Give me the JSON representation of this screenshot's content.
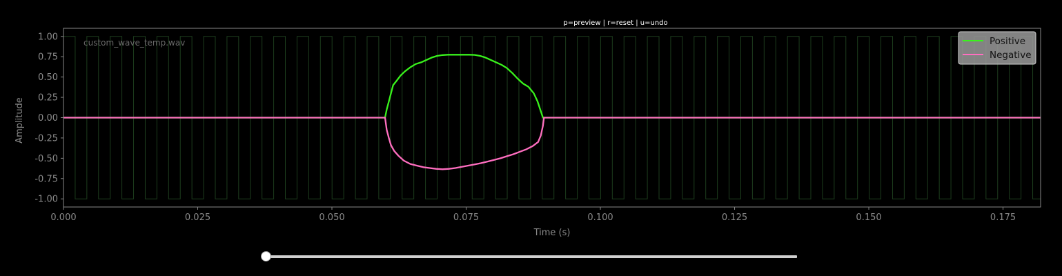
{
  "hint_text": "p=preview | r=reset | u=undo",
  "file_label": "custom_wave_temp.wav",
  "slider_value": 0.0,
  "chart_data": {
    "type": "line",
    "xlabel": "Time (s)",
    "ylabel": "Amplitude",
    "xlim": [
      0.0,
      0.182
    ],
    "ylim": [
      -1.1,
      1.1
    ],
    "xticks": [
      "0.000",
      "0.025",
      "0.050",
      "0.075",
      "0.100",
      "0.125",
      "0.150",
      "0.175"
    ],
    "yticks": [
      "1.00",
      "0.75",
      "0.50",
      "0.25",
      "0.00",
      "-0.25",
      "-0.50",
      "-0.75",
      "-1.00"
    ],
    "legend_position": "top-right",
    "background_wave": {
      "type": "square",
      "period": 0.00435,
      "amplitude": 1.0,
      "color": "#1d3d1d"
    },
    "series": [
      {
        "name": "Positive",
        "color": "#39f21c",
        "x": [
          0.0,
          0.0599,
          0.0602,
          0.0606,
          0.061,
          0.0614,
          0.062,
          0.0628,
          0.0636,
          0.0646,
          0.0656,
          0.0666,
          0.0676,
          0.0686,
          0.0696,
          0.0706,
          0.0716,
          0.0726,
          0.0736,
          0.0746,
          0.0756,
          0.0766,
          0.0776,
          0.0786,
          0.0796,
          0.0806,
          0.0816,
          0.0826,
          0.0836,
          0.0846,
          0.0856,
          0.0866,
          0.0876,
          0.0883,
          0.0888,
          0.0893,
          0.0895,
          0.182
        ],
        "y": [
          0.0,
          0.0,
          0.1,
          0.2,
          0.3,
          0.4,
          0.45,
          0.52,
          0.57,
          0.62,
          0.66,
          0.68,
          0.71,
          0.74,
          0.76,
          0.77,
          0.775,
          0.775,
          0.775,
          0.775,
          0.775,
          0.772,
          0.76,
          0.74,
          0.71,
          0.68,
          0.65,
          0.61,
          0.55,
          0.48,
          0.42,
          0.38,
          0.3,
          0.2,
          0.1,
          0.0,
          0.0,
          0.0
        ]
      },
      {
        "name": "Negative",
        "color": "#ff6ec0",
        "x": [
          0.0,
          0.0599,
          0.0602,
          0.0606,
          0.061,
          0.0616,
          0.0624,
          0.0634,
          0.0646,
          0.0658,
          0.067,
          0.0682,
          0.0694,
          0.0706,
          0.0718,
          0.073,
          0.0742,
          0.0754,
          0.0766,
          0.0778,
          0.079,
          0.0802,
          0.0814,
          0.0826,
          0.0838,
          0.085,
          0.0862,
          0.0874,
          0.0884,
          0.0889,
          0.0893,
          0.0895,
          0.182
        ],
        "y": [
          0.0,
          0.0,
          -0.15,
          -0.25,
          -0.34,
          -0.41,
          -0.47,
          -0.53,
          -0.57,
          -0.59,
          -0.61,
          -0.62,
          -0.63,
          -0.635,
          -0.63,
          -0.62,
          -0.605,
          -0.59,
          -0.575,
          -0.56,
          -0.54,
          -0.52,
          -0.5,
          -0.475,
          -0.45,
          -0.42,
          -0.39,
          -0.35,
          -0.3,
          -0.22,
          -0.1,
          0.0,
          0.0
        ]
      }
    ]
  }
}
